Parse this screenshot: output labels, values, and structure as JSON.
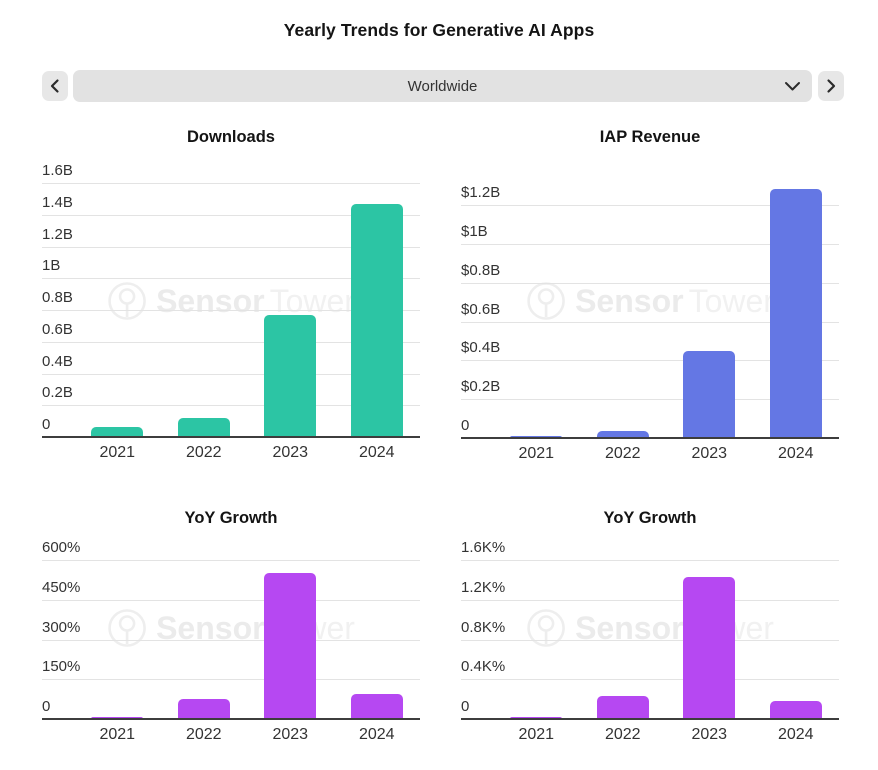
{
  "header": {
    "title": "Yearly Trends for Generative AI Apps"
  },
  "selector": {
    "value": "Worldwide"
  },
  "watermark": {
    "bold": "Sensor",
    "light": "Tower"
  },
  "colors": {
    "downloads_bar": "#2cc5a4",
    "revenue_bar": "#6477e4",
    "growth_bar": "#b648f2",
    "gridline": "#e3e3e3",
    "axis": "#3d3d3d"
  },
  "chart_data": [
    {
      "type": "bar",
      "position": "top-left",
      "title": "Downloads",
      "categories": [
        "2021",
        "2022",
        "2023",
        "2024"
      ],
      "values": [
        0.065,
        0.12,
        0.77,
        1.47
      ],
      "value_unit": "B downloads",
      "ytick_labels": [
        "0",
        "0.2B",
        "0.4B",
        "0.6B",
        "0.8B",
        "1B",
        "1.2B",
        "1.4B",
        "1.6B"
      ],
      "ylim": [
        0,
        1.6
      ],
      "grid": true,
      "legend": false,
      "bar_color": "#2cc5a4"
    },
    {
      "type": "bar",
      "position": "top-right",
      "title": "IAP Revenue",
      "categories": [
        "2021",
        "2022",
        "2023",
        "2024"
      ],
      "values": [
        0.012,
        0.035,
        0.45,
        1.28
      ],
      "value_unit": "$B revenue",
      "ytick_labels": [
        "0",
        "$0.2B",
        "$0.4B",
        "$0.6B",
        "$0.8B",
        "$1B",
        "$1.2B"
      ],
      "ylim": [
        0,
        1.2
      ],
      "grid": true,
      "legend": false,
      "bar_color": "#6477e4"
    },
    {
      "type": "bar",
      "position": "bottom-left",
      "title": "YoY Growth",
      "categories": [
        "2021",
        "2022",
        "2023",
        "2024"
      ],
      "values": [
        8,
        75,
        550,
        95
      ],
      "value_unit": "% downloads growth",
      "ytick_labels": [
        "0",
        "150%",
        "300%",
        "450%",
        "600%"
      ],
      "ylim": [
        0,
        600
      ],
      "grid": true,
      "legend": false,
      "bar_color": "#b648f2"
    },
    {
      "type": "bar",
      "position": "bottom-right",
      "title": "YoY Growth",
      "categories": [
        "2021",
        "2022",
        "2023",
        "2024"
      ],
      "values": [
        15,
        235,
        1430,
        180
      ],
      "value_unit": "% revenue growth",
      "ytick_labels": [
        "0",
        "0.4K%",
        "0.8K%",
        "1.2K%",
        "1.6K%"
      ],
      "ylim": [
        0,
        1600
      ],
      "grid": true,
      "legend": false,
      "bar_color": "#b648f2"
    }
  ]
}
